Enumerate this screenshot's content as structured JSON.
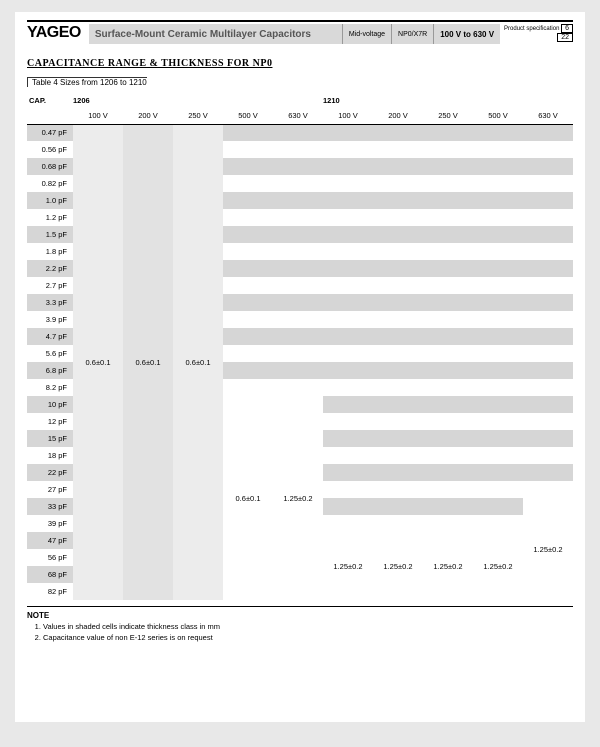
{
  "header": {
    "logo": "YAGEO",
    "title": "Surface-Mount Ceramic Multilayer Capacitors",
    "tag1": "Mid-voltage",
    "tag2": "NP0/X7R",
    "range": "100 V to 630 V",
    "spec_label": "Product specification",
    "page_num": "6",
    "page_total": "22"
  },
  "section": {
    "title": "CAPACITANCE RANGE & THICKNESS FOR NP0",
    "subtitle": "Table 4   Sizes from 1206 to 1210"
  },
  "table": {
    "cap_header": "CAP.",
    "groups": [
      "1206",
      "1210"
    ],
    "volts": [
      "100 V",
      "200 V",
      "250 V",
      "500 V",
      "630 V",
      "100 V",
      "200 V",
      "250 V",
      "500 V",
      "630 V"
    ],
    "caps": [
      "0.47 pF",
      "0.56 pF",
      "0.68 pF",
      "0.82 pF",
      "1.0 pF",
      "1.2 pF",
      "1.5 pF",
      "1.8 pF",
      "2.2 pF",
      "2.7 pF",
      "3.3 pF",
      "3.9 pF",
      "4.7 pF",
      "5.6 pF",
      "6.8 pF",
      "8.2 pF",
      "10 pF",
      "12 pF",
      "15 pF",
      "18 pF",
      "22 pF",
      "27 pF",
      "33 pF",
      "39 pF",
      "47 pF",
      "56 pF",
      "68 pF",
      "82 pF"
    ],
    "v1": "0.6±0.1",
    "v2": "1.25±0.2"
  },
  "notes": {
    "head": "NOTE",
    "items": [
      "Values in shaded cells indicate thickness class in mm",
      "Capacitance value of non E-12 series is on request"
    ]
  },
  "colors": {
    "page_bg": "#ffffff",
    "body_bg": "#e8e8e8",
    "shade_even": "#d6d6d6",
    "shade_col_a": "#ececec",
    "shade_col_b": "#e2e2e2"
  }
}
